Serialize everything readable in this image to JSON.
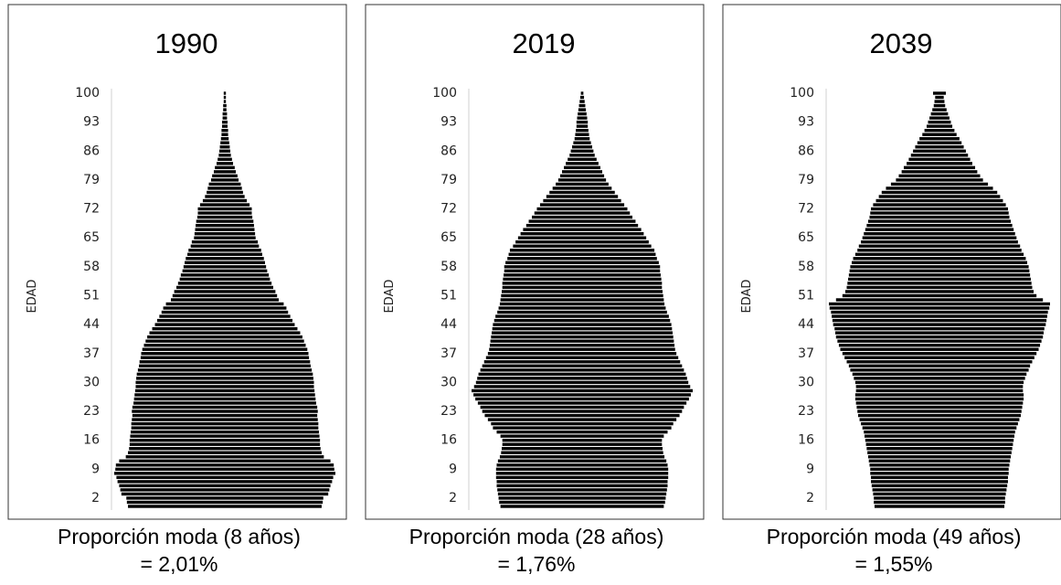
{
  "chart_data": [
    {
      "type": "bar",
      "orientation": "horizontal",
      "title": "1990",
      "y_label": "EDAD",
      "color": "#000000",
      "categories": [
        null,
        null,
        2,
        null,
        null,
        null,
        null,
        null,
        null,
        9,
        null,
        null,
        null,
        null,
        null,
        null,
        16,
        null,
        null,
        null,
        null,
        null,
        null,
        23,
        null,
        null,
        null,
        null,
        null,
        null,
        30,
        null,
        null,
        null,
        null,
        null,
        null,
        37,
        null,
        null,
        null,
        null,
        null,
        null,
        44,
        null,
        null,
        null,
        null,
        null,
        null,
        51,
        null,
        null,
        null,
        null,
        null,
        null,
        58,
        null,
        null,
        null,
        null,
        null,
        null,
        65,
        null,
        null,
        null,
        null,
        null,
        null,
        72,
        null,
        null,
        null,
        null,
        null,
        null,
        79,
        null,
        null,
        null,
        null,
        null,
        null,
        86,
        null,
        null,
        null,
        null,
        null,
        null,
        93,
        null,
        null,
        null,
        null,
        null,
        null,
        100
      ],
      "values": [
        1.76,
        1.78,
        1.79,
        1.88,
        1.9,
        1.92,
        1.95,
        1.97,
        2.01,
        1.99,
        1.98,
        1.92,
        1.8,
        1.76,
        1.74,
        1.73,
        1.73,
        1.72,
        1.71,
        1.7,
        1.7,
        1.69,
        1.68,
        1.69,
        1.68,
        1.66,
        1.65,
        1.64,
        1.63,
        1.62,
        1.62,
        1.61,
        1.6,
        1.58,
        1.56,
        1.55,
        1.53,
        1.52,
        1.5,
        1.47,
        1.44,
        1.41,
        1.37,
        1.32,
        1.27,
        1.23,
        1.19,
        1.15,
        1.12,
        1.07,
        0.98,
        0.95,
        0.92,
        0.88,
        0.85,
        0.82,
        0.8,
        0.77,
        0.75,
        0.73,
        0.71,
        0.68,
        0.66,
        0.62,
        0.6,
        0.56,
        0.55,
        0.54,
        0.53,
        0.52,
        0.5,
        0.49,
        0.49,
        0.45,
        0.4,
        0.36,
        0.33,
        0.31,
        0.29,
        0.25,
        0.23,
        0.2,
        0.18,
        0.15,
        0.13,
        0.11,
        0.1,
        0.09,
        0.08,
        0.07,
        0.06,
        0.06,
        0.05,
        0.05,
        0.04,
        0.04,
        0.03,
        0.03,
        0.02,
        0.02,
        0.02
      ],
      "annotations": [
        "Proporción moda (8 años)",
        "= 2,01%"
      ]
    },
    {
      "type": "bar",
      "orientation": "horizontal",
      "title": "2019",
      "y_label": "EDAD",
      "color": "#000000",
      "categories": [
        null,
        null,
        2,
        null,
        null,
        null,
        null,
        null,
        null,
        9,
        null,
        null,
        null,
        null,
        null,
        null,
        16,
        null,
        null,
        null,
        null,
        null,
        null,
        23,
        null,
        null,
        null,
        null,
        null,
        null,
        30,
        null,
        null,
        null,
        null,
        null,
        null,
        37,
        null,
        null,
        null,
        null,
        null,
        null,
        44,
        null,
        null,
        null,
        null,
        null,
        null,
        51,
        null,
        null,
        null,
        null,
        null,
        null,
        58,
        null,
        null,
        null,
        null,
        null,
        null,
        65,
        null,
        null,
        null,
        null,
        null,
        null,
        72,
        null,
        null,
        null,
        null,
        null,
        null,
        79,
        null,
        null,
        null,
        null,
        null,
        null,
        86,
        null,
        null,
        null,
        null,
        null,
        null,
        93,
        null,
        null,
        null,
        null,
        null,
        null,
        100
      ],
      "values": [
        1.3,
        1.32,
        1.33,
        1.34,
        1.35,
        1.36,
        1.36,
        1.37,
        1.37,
        1.37,
        1.36,
        1.34,
        1.31,
        1.29,
        1.28,
        1.27,
        1.27,
        1.3,
        1.36,
        1.42,
        1.45,
        1.5,
        1.55,
        1.59,
        1.62,
        1.66,
        1.7,
        1.73,
        1.76,
        1.72,
        1.69,
        1.67,
        1.65,
        1.62,
        1.59,
        1.56,
        1.53,
        1.5,
        1.48,
        1.47,
        1.46,
        1.45,
        1.44,
        1.43,
        1.42,
        1.4,
        1.38,
        1.35,
        1.33,
        1.31,
        1.3,
        1.29,
        1.28,
        1.27,
        1.27,
        1.26,
        1.25,
        1.24,
        1.24,
        1.22,
        1.19,
        1.17,
        1.15,
        1.1,
        1.06,
        1.02,
        0.98,
        0.94,
        0.89,
        0.85,
        0.8,
        0.76,
        0.72,
        0.67,
        0.62,
        0.57,
        0.52,
        0.47,
        0.42,
        0.38,
        0.35,
        0.32,
        0.29,
        0.26,
        0.23,
        0.2,
        0.18,
        0.16,
        0.14,
        0.12,
        0.11,
        0.1,
        0.09,
        0.09,
        0.08,
        0.07,
        0.06,
        0.05,
        0.04,
        0.03,
        0.02
      ],
      "annotations": [
        "Proporción moda (28 años)",
        "= 1,76%"
      ]
    },
    {
      "type": "bar",
      "orientation": "horizontal",
      "title": "2039",
      "y_label": "EDAD",
      "color": "#000000",
      "categories": [
        null,
        null,
        2,
        null,
        null,
        null,
        null,
        null,
        null,
        9,
        null,
        null,
        null,
        null,
        null,
        null,
        16,
        null,
        null,
        null,
        null,
        null,
        null,
        23,
        null,
        null,
        null,
        null,
        null,
        null,
        30,
        null,
        null,
        null,
        null,
        null,
        null,
        37,
        null,
        null,
        null,
        null,
        null,
        null,
        44,
        null,
        null,
        null,
        null,
        null,
        null,
        51,
        null,
        null,
        null,
        null,
        null,
        null,
        58,
        null,
        null,
        null,
        null,
        null,
        null,
        65,
        null,
        null,
        null,
        null,
        null,
        null,
        72,
        null,
        null,
        null,
        null,
        null,
        null,
        79,
        null,
        null,
        null,
        null,
        null,
        null,
        86,
        null,
        null,
        null,
        null,
        null,
        null,
        93,
        null,
        null,
        null,
        null,
        null,
        null,
        100
      ],
      "values": [
        0.91,
        0.92,
        0.92,
        0.93,
        0.94,
        0.95,
        0.96,
        0.96,
        0.97,
        0.97,
        0.98,
        0.99,
        1.0,
        1.01,
        1.02,
        1.03,
        1.04,
        1.05,
        1.06,
        1.08,
        1.1,
        1.12,
        1.14,
        1.15,
        1.16,
        1.17,
        1.18,
        1.18,
        1.17,
        1.17,
        1.18,
        1.2,
        1.22,
        1.25,
        1.27,
        1.3,
        1.33,
        1.36,
        1.39,
        1.41,
        1.43,
        1.45,
        1.46,
        1.47,
        1.49,
        1.5,
        1.51,
        1.52,
        1.54,
        1.55,
        1.45,
        1.36,
        1.32,
        1.3,
        1.29,
        1.28,
        1.27,
        1.26,
        1.25,
        1.23,
        1.21,
        1.18,
        1.15,
        1.13,
        1.1,
        1.08,
        1.06,
        1.04,
        1.02,
        1.0,
        0.98,
        0.97,
        0.96,
        0.93,
        0.89,
        0.85,
        0.81,
        0.75,
        0.68,
        0.61,
        0.57,
        0.53,
        0.5,
        0.46,
        0.43,
        0.4,
        0.37,
        0.34,
        0.31,
        0.28,
        0.24,
        0.21,
        0.18,
        0.16,
        0.14,
        0.12,
        0.1,
        0.08,
        0.07,
        0.06,
        0.09
      ],
      "annotations": [
        "Proporción moda (49 años)",
        "= 1,55%"
      ]
    }
  ]
}
